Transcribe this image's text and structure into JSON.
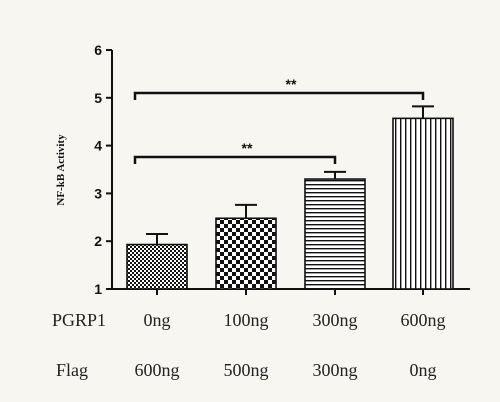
{
  "chart_data": {
    "type": "bar",
    "ylabel": "NF-kB Activity",
    "xlabel": "",
    "title": "",
    "ylim": [
      1,
      6
    ],
    "yticks": [
      1,
      2,
      3,
      4,
      5,
      6
    ],
    "values": [
      1.93,
      2.48,
      3.3,
      4.57
    ],
    "errors": [
      0.22,
      0.28,
      0.15,
      0.25
    ],
    "patterns": [
      "dots",
      "checker",
      "horizontal-stripes",
      "vertical-stripes"
    ],
    "significance": [
      {
        "from": 0,
        "to": 2,
        "label": "**"
      },
      {
        "from": 0,
        "to": 3,
        "label": "**"
      }
    ],
    "treatment_rows": [
      {
        "label": "PGRP1",
        "values": [
          "0ng",
          "100ng",
          "300ng",
          "600ng"
        ]
      },
      {
        "label": "Flag",
        "values": [
          "600ng",
          "500ng",
          "300ng",
          "0ng"
        ]
      }
    ]
  },
  "colors": {
    "bar_fill": "#ffffff",
    "bar_stroke": "#111111",
    "background": "#f7f6f1"
  }
}
